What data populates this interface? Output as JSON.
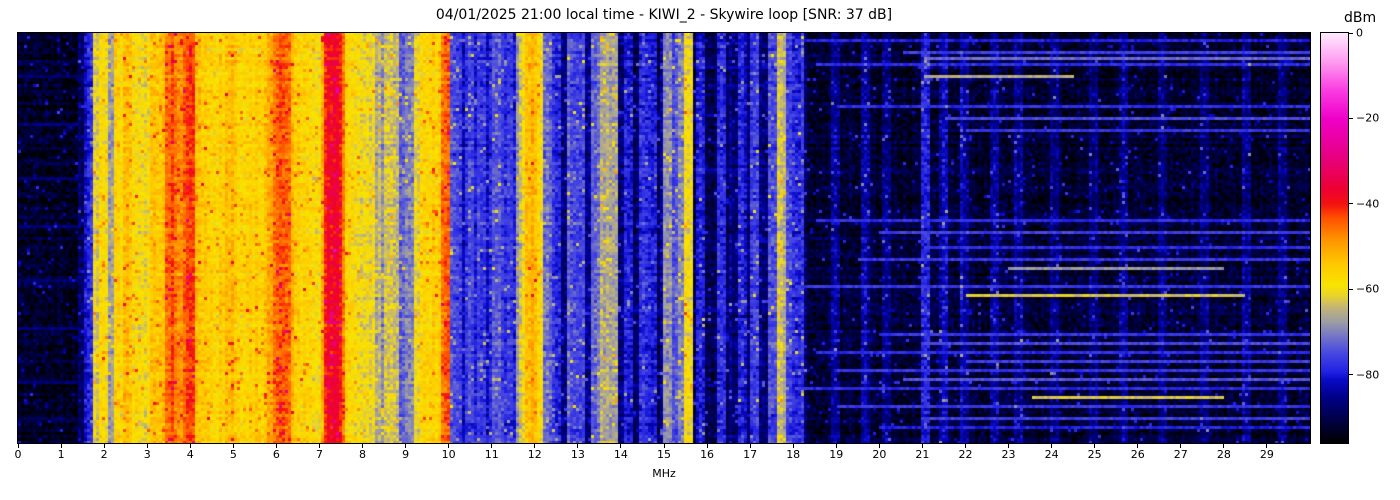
{
  "chart_data": {
    "type": "heatmap",
    "title": "04/01/2025 21:00 local time - KIWI_2 - Skywire loop [SNR: 37 dB]",
    "xlabel": "MHz",
    "x_range": [
      0,
      30
    ],
    "x_ticks": [
      "0",
      "1",
      "2",
      "3",
      "4",
      "5",
      "6",
      "7",
      "8",
      "9",
      "10",
      "11",
      "12",
      "13",
      "14",
      "15",
      "16",
      "17",
      "18",
      "19",
      "20",
      "21",
      "22",
      "23",
      "24",
      "25",
      "26",
      "27",
      "28",
      "29"
    ],
    "y_ticks": [],
    "colorbar": {
      "label": "dBm",
      "tick_labels": [
        "0",
        "−20",
        "−40",
        "−60",
        "−80"
      ],
      "tick_values": [
        0,
        -20,
        -40,
        -60,
        -80
      ],
      "range_dbm": [
        -96,
        0
      ],
      "colormap": [
        [
          0.0,
          "#000000"
        ],
        [
          0.05,
          "#00003c"
        ],
        [
          0.11,
          "#000088"
        ],
        [
          0.155,
          "#0a0ac8"
        ],
        [
          0.175,
          "#2222e4"
        ],
        [
          0.22,
          "#4848e0"
        ],
        [
          0.26,
          "#7474c8"
        ],
        [
          0.295,
          "#9c9ca4"
        ],
        [
          0.33,
          "#c2b478"
        ],
        [
          0.36,
          "#e8d42a"
        ],
        [
          0.385,
          "#f8e400"
        ],
        [
          0.44,
          "#ffc600"
        ],
        [
          0.5,
          "#ff9000"
        ],
        [
          0.55,
          "#ff4e00"
        ],
        [
          0.583,
          "#f31111"
        ],
        [
          0.62,
          "#ee0033"
        ],
        [
          0.7,
          "#e70082"
        ],
        [
          0.79,
          "#ee00c8"
        ],
        [
          0.86,
          "#fa3ce2"
        ],
        [
          0.93,
          "#ff9cf0"
        ],
        [
          1.0,
          "#ffeaff"
        ]
      ]
    },
    "bands_columns": [
      "from_mhz",
      "to_mhz",
      "mean_dbm",
      "column_var_db",
      "row_var_db"
    ],
    "bands": [
      [
        0.0,
        1.4,
        -93,
        1.2,
        2.2
      ],
      [
        1.4,
        1.62,
        -87,
        2.0,
        1.5
      ],
      [
        1.62,
        2.3,
        -82,
        4.0,
        1.2
      ],
      [
        2.3,
        3.2,
        -75,
        6.0,
        1.2
      ],
      [
        3.2,
        4.15,
        -62,
        6.0,
        1.2
      ],
      [
        4.15,
        5.8,
        -71,
        7.0,
        1.2
      ],
      [
        5.8,
        6.35,
        -63,
        6.0,
        1.2
      ],
      [
        6.35,
        7.1,
        -73,
        6.0,
        1.2
      ],
      [
        7.1,
        7.5,
        -52,
        5.0,
        1.2
      ],
      [
        7.5,
        8.2,
        -72,
        6.0,
        1.2
      ],
      [
        8.2,
        9.2,
        -78,
        4.0,
        1.2
      ],
      [
        9.2,
        10.05,
        -73,
        5.0,
        1.2
      ],
      [
        10.05,
        11.6,
        -79,
        3.5,
        1.2
      ],
      [
        11.6,
        12.15,
        -66,
        5.0,
        1.2
      ],
      [
        12.15,
        13.3,
        -86,
        2.5,
        1.5
      ],
      [
        13.3,
        13.95,
        -80,
        4.0,
        1.2
      ],
      [
        13.95,
        14.9,
        -88,
        2.0,
        1.5
      ],
      [
        14.9,
        15.65,
        -82,
        3.5,
        1.2
      ],
      [
        15.65,
        16.5,
        -89,
        1.8,
        1.5
      ],
      [
        16.5,
        18.3,
        -87,
        2.2,
        1.6
      ],
      [
        18.3,
        30.01,
        -92,
        1.4,
        1.3
      ]
    ],
    "carriers_columns": [
      "freq_mhz",
      "peak_dbm",
      "width_mhz_optional"
    ],
    "carriers": [
      [
        1.62,
        -80
      ],
      [
        1.71,
        -78
      ],
      [
        1.84,
        -62
      ],
      [
        1.93,
        -75
      ],
      [
        1.98,
        -58
      ],
      [
        2.09,
        -68
      ],
      [
        2.17,
        -72
      ],
      [
        2.31,
        -57
      ],
      [
        2.41,
        -60
      ],
      [
        2.5,
        -54
      ],
      [
        2.58,
        -62
      ],
      [
        2.65,
        -57
      ],
      [
        2.73,
        -64
      ],
      [
        2.8,
        -60
      ],
      [
        2.88,
        -61
      ],
      [
        2.97,
        -66
      ],
      [
        3.07,
        -60
      ],
      [
        3.16,
        -53
      ],
      [
        3.26,
        -56
      ],
      [
        3.33,
        -53
      ],
      [
        3.41,
        -57
      ],
      [
        3.48,
        -44
      ],
      [
        3.56,
        -50
      ],
      [
        3.62,
        -47
      ],
      [
        3.68,
        -52
      ],
      [
        3.74,
        -49
      ],
      [
        3.8,
        -54
      ],
      [
        3.86,
        -51
      ],
      [
        3.92,
        -46
      ],
      [
        3.97,
        -42
      ],
      [
        4.05,
        -55
      ],
      [
        4.12,
        -53
      ],
      [
        4.2,
        -57
      ],
      [
        4.29,
        -55
      ],
      [
        4.38,
        -59
      ],
      [
        4.47,
        -56
      ],
      [
        4.56,
        -60
      ],
      [
        4.65,
        -57
      ],
      [
        4.74,
        -55
      ],
      [
        4.84,
        -53
      ],
      [
        4.93,
        -58
      ],
      [
        5.01,
        -56
      ],
      [
        5.1,
        -60
      ],
      [
        5.2,
        -58
      ],
      [
        5.31,
        -56
      ],
      [
        5.42,
        -60
      ],
      [
        5.51,
        -58
      ],
      [
        5.6,
        -56
      ],
      [
        5.7,
        -61
      ],
      [
        5.8,
        -55
      ],
      [
        5.88,
        -50
      ],
      [
        5.96,
        -45
      ],
      [
        6.03,
        -51
      ],
      [
        6.1,
        -48
      ],
      [
        6.17,
        -44
      ],
      [
        6.24,
        -52
      ],
      [
        6.31,
        -55
      ],
      [
        6.42,
        -59
      ],
      [
        6.52,
        -57
      ],
      [
        6.62,
        -60
      ],
      [
        6.71,
        -57
      ],
      [
        6.8,
        -61
      ],
      [
        6.89,
        -58
      ],
      [
        7.0,
        -62
      ],
      [
        7.1,
        -50
      ],
      [
        7.18,
        -41
      ],
      [
        7.24,
        -39
      ],
      [
        7.3,
        -38,
        0.09
      ],
      [
        7.36,
        -40
      ],
      [
        7.42,
        -47
      ],
      [
        7.51,
        -57
      ],
      [
        7.6,
        -56
      ],
      [
        7.7,
        -60
      ],
      [
        7.78,
        -58
      ],
      [
        7.87,
        -62
      ],
      [
        7.95,
        -60
      ],
      [
        8.04,
        -63
      ],
      [
        8.13,
        -61
      ],
      [
        8.25,
        -66
      ],
      [
        8.4,
        -70
      ],
      [
        8.55,
        -62
      ],
      [
        8.7,
        -64
      ],
      [
        8.85,
        -72
      ],
      [
        9.05,
        -70
      ],
      [
        9.28,
        -60
      ],
      [
        9.4,
        -57
      ],
      [
        9.5,
        -61
      ],
      [
        9.58,
        -58
      ],
      [
        9.66,
        -56
      ],
      [
        9.74,
        -59
      ],
      [
        9.86,
        -45
      ],
      [
        10.0,
        -74
      ],
      [
        10.15,
        -78
      ],
      [
        10.44,
        -76
      ],
      [
        10.7,
        -77
      ],
      [
        11.05,
        -74
      ],
      [
        11.3,
        -77
      ],
      [
        11.62,
        -68
      ],
      [
        11.73,
        -60
      ],
      [
        11.81,
        -54
      ],
      [
        11.9,
        -52
      ],
      [
        11.98,
        -56
      ],
      [
        12.07,
        -60
      ],
      [
        12.22,
        -72
      ],
      [
        12.48,
        -78
      ],
      [
        12.79,
        -74
      ],
      [
        13.0,
        -76
      ],
      [
        13.35,
        -72
      ],
      [
        13.57,
        -66
      ],
      [
        13.7,
        -67
      ],
      [
        13.8,
        -68
      ],
      [
        14.1,
        -80
      ],
      [
        14.45,
        -78
      ],
      [
        14.7,
        -79
      ],
      [
        15.04,
        -69
      ],
      [
        15.2,
        -74
      ],
      [
        15.35,
        -70
      ],
      [
        15.47,
        -72
      ],
      [
        15.55,
        -60
      ],
      [
        15.8,
        -80
      ],
      [
        16.3,
        -79
      ],
      [
        16.8,
        -80
      ],
      [
        17.05,
        -76
      ],
      [
        17.48,
        -74
      ],
      [
        17.7,
        -64
      ],
      [
        17.87,
        -77
      ],
      [
        18.1,
        -78
      ],
      [
        18.9,
        -85
      ],
      [
        19.65,
        -84
      ],
      [
        20.1,
        -85
      ],
      [
        21.0,
        -80
      ],
      [
        21.45,
        -83
      ],
      [
        21.9,
        -84
      ],
      [
        22.6,
        -85
      ],
      [
        23.2,
        -85
      ],
      [
        24.0,
        -86
      ],
      [
        24.9,
        -86
      ],
      [
        25.6,
        -85
      ],
      [
        26.5,
        -86
      ],
      [
        27.5,
        -86
      ],
      [
        28.5,
        -85
      ],
      [
        29.3,
        -86
      ]
    ],
    "streaks_columns": [
      "row_fraction_from_top",
      "from_mhz",
      "to_mhz",
      "level_dbm"
    ],
    "streaks": [
      [
        0.1,
        0,
        1.45,
        -87
      ],
      [
        0.22,
        0,
        1.45,
        -86
      ],
      [
        0.35,
        0,
        1.45,
        -87
      ],
      [
        0.47,
        0,
        1.45,
        -86
      ],
      [
        0.6,
        0,
        1.45,
        -87
      ],
      [
        0.72,
        0,
        1.45,
        -86
      ],
      [
        0.85,
        0,
        1.45,
        -87
      ],
      [
        0.2,
        12.2,
        16.4,
        -84
      ],
      [
        0.33,
        12.2,
        18.3,
        -84
      ],
      [
        0.52,
        12.5,
        16.0,
        -85
      ],
      [
        0.68,
        12.2,
        17.0,
        -84
      ],
      [
        0.86,
        12.8,
        16.2,
        -85
      ],
      [
        0.08,
        15.7,
        18.3,
        -83
      ],
      [
        0.125,
        16.0,
        18.3,
        -84
      ],
      [
        0.017,
        18.0,
        30,
        -79
      ],
      [
        0.046,
        20.5,
        30,
        -76
      ],
      [
        0.059,
        21.0,
        30,
        -72
      ],
      [
        0.073,
        18.5,
        30,
        -78
      ],
      [
        0.105,
        21.0,
        24.5,
        -66
      ],
      [
        0.18,
        19.0,
        30,
        -78
      ],
      [
        0.207,
        21.5,
        30,
        -75
      ],
      [
        0.237,
        22.0,
        30,
        -77
      ],
      [
        0.456,
        18.5,
        30,
        -78
      ],
      [
        0.488,
        20.0,
        30,
        -76
      ],
      [
        0.522,
        21.0,
        30,
        -78
      ],
      [
        0.554,
        19.5,
        30,
        -77
      ],
      [
        0.571,
        23.0,
        28.0,
        -68
      ],
      [
        0.62,
        18.0,
        30,
        -77
      ],
      [
        0.641,
        22.0,
        28.5,
        -63
      ],
      [
        0.732,
        20.0,
        30,
        -77
      ],
      [
        0.756,
        21.0,
        30,
        -75
      ],
      [
        0.778,
        18.5,
        30,
        -78
      ],
      [
        0.802,
        22.0,
        30,
        -76
      ],
      [
        0.822,
        19.0,
        30,
        -77
      ],
      [
        0.846,
        20.5,
        30,
        -74
      ],
      [
        0.871,
        18.0,
        30,
        -78
      ],
      [
        0.893,
        23.5,
        28.0,
        -63
      ],
      [
        0.915,
        19.0,
        30,
        -77
      ],
      [
        0.939,
        21.0,
        30,
        -76
      ],
      [
        0.963,
        20.0,
        30,
        -79
      ]
    ]
  }
}
